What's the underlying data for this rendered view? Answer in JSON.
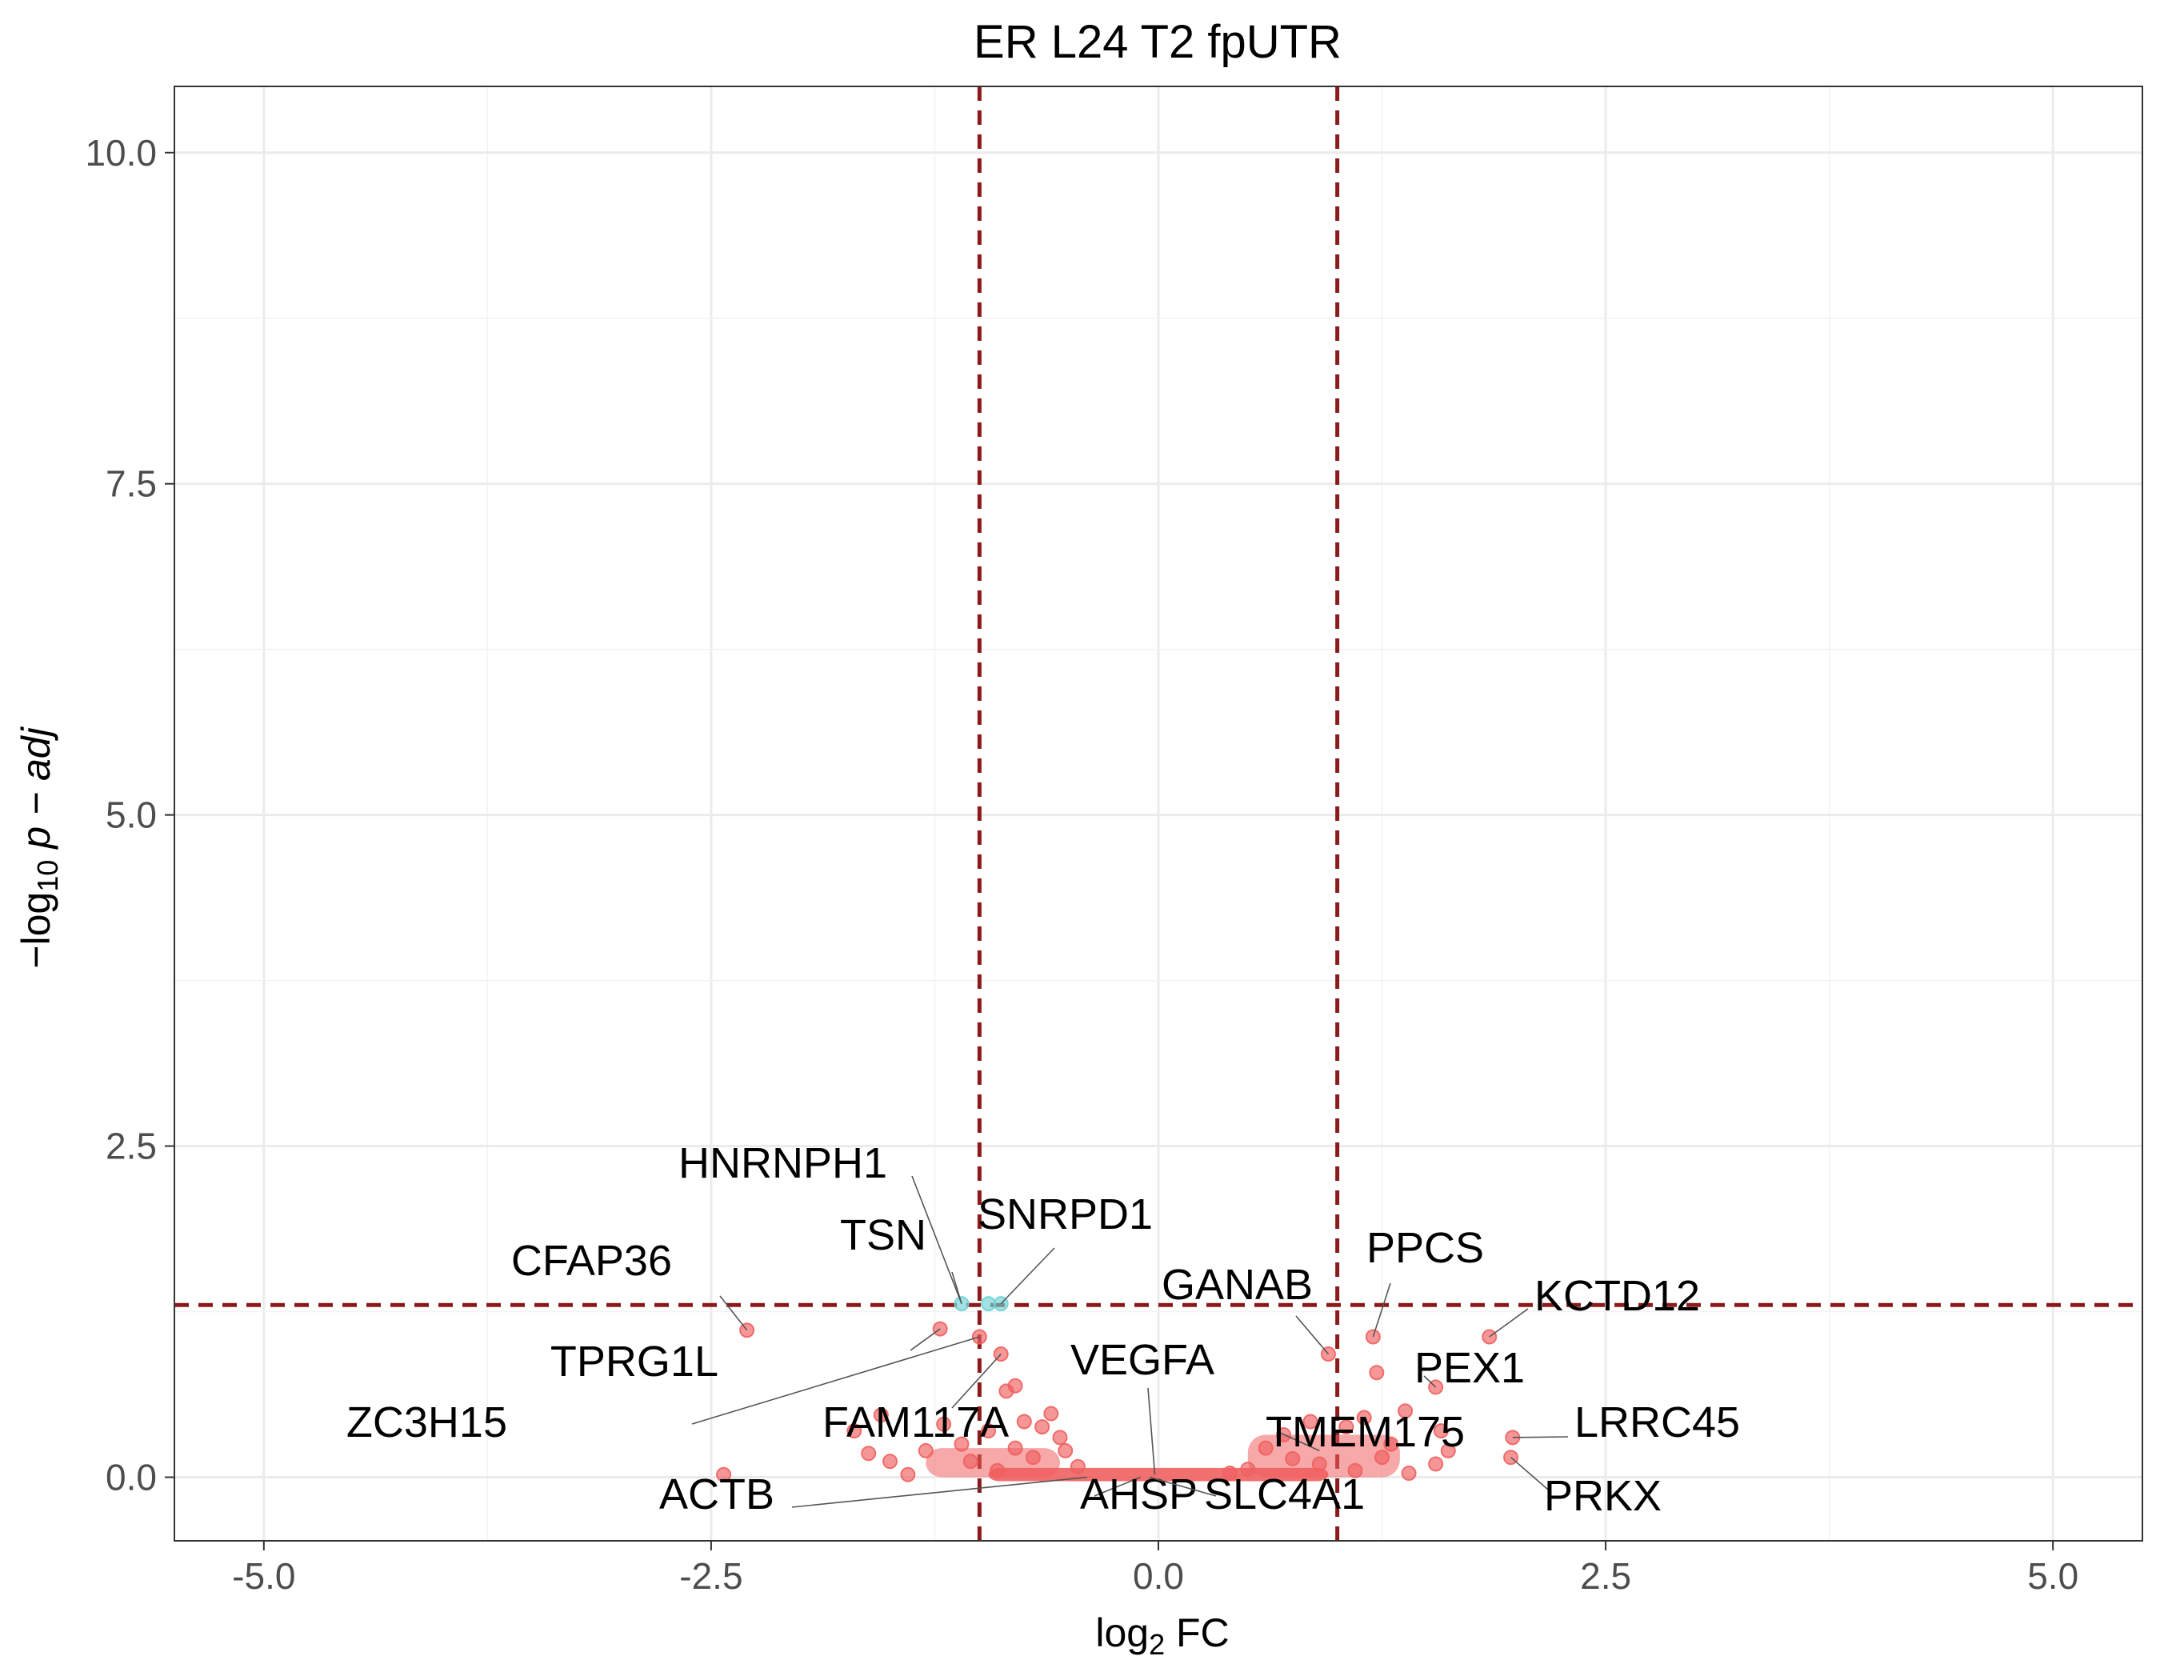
{
  "chart_data": {
    "type": "scatter",
    "title": "ER L24 T2 fpUTR",
    "xlabel": "log2 FC",
    "ylabel": "−log10 p − adj",
    "xlim": [
      -5.5,
      5.5
    ],
    "ylim": [
      -0.48,
      10.5
    ],
    "x_ticks": [
      -5.0,
      -2.5,
      0.0,
      2.5,
      5.0
    ],
    "x_tick_labels": [
      "-5.0",
      "-2.5",
      "0.0",
      "2.5",
      "5.0"
    ],
    "y_ticks": [
      0.0,
      2.5,
      5.0,
      7.5,
      10.0
    ],
    "y_tick_labels": [
      "0.0",
      "2.5",
      "5.0",
      "7.5",
      "10.0"
    ],
    "grid": true,
    "thresholds": {
      "fc": [
        -1.0,
        1.0
      ],
      "neglog10_padj": 1.3,
      "color": "#8b1a1a"
    },
    "colors": {
      "significant": "#6fd3d6",
      "not_significant": "#f06060"
    },
    "series": [
      {
        "group": "significant",
        "points": [
          {
            "x": -1.1,
            "y": 1.31
          },
          {
            "x": -0.95,
            "y": 1.31
          },
          {
            "x": -0.88,
            "y": 1.31
          }
        ]
      },
      {
        "group": "not_significant",
        "points": [
          {
            "x": -2.3,
            "y": 1.11
          },
          {
            "x": -1.22,
            "y": 1.12
          },
          {
            "x": -1.0,
            "y": 1.06
          },
          {
            "x": -0.88,
            "y": 0.93
          },
          {
            "x": -0.8,
            "y": 0.69
          },
          {
            "x": -0.85,
            "y": 0.65
          },
          {
            "x": -1.55,
            "y": 0.47
          },
          {
            "x": -1.7,
            "y": 0.35
          },
          {
            "x": -1.62,
            "y": 0.18
          },
          {
            "x": -1.5,
            "y": 0.12
          },
          {
            "x": -1.4,
            "y": 0.02
          },
          {
            "x": -2.43,
            "y": 0.02
          },
          {
            "x": -1.3,
            "y": 0.2
          },
          {
            "x": -1.2,
            "y": 0.4
          },
          {
            "x": -1.1,
            "y": 0.25
          },
          {
            "x": -0.95,
            "y": 0.35
          },
          {
            "x": -0.75,
            "y": 0.42
          },
          {
            "x": -0.6,
            "y": 0.48
          },
          {
            "x": -0.55,
            "y": 0.3
          },
          {
            "x": -0.52,
            "y": 0.2
          },
          {
            "x": -0.7,
            "y": 0.15
          },
          {
            "x": -0.65,
            "y": 0.38
          },
          {
            "x": -0.9,
            "y": 0.05
          },
          {
            "x": -1.05,
            "y": 0.12
          },
          {
            "x": -0.8,
            "y": 0.22
          },
          {
            "x": -0.45,
            "y": 0.08
          },
          {
            "x": 0.95,
            "y": 0.93
          },
          {
            "x": 1.2,
            "y": 1.06
          },
          {
            "x": 1.22,
            "y": 0.79
          },
          {
            "x": 1.55,
            "y": 0.68
          },
          {
            "x": 1.38,
            "y": 0.5
          },
          {
            "x": 1.85,
            "y": 1.06
          },
          {
            "x": 1.98,
            "y": 0.3
          },
          {
            "x": 1.97,
            "y": 0.15
          },
          {
            "x": 1.58,
            "y": 0.35
          },
          {
            "x": 1.62,
            "y": 0.2
          },
          {
            "x": 1.55,
            "y": 0.1
          },
          {
            "x": 1.15,
            "y": 0.45
          },
          {
            "x": 1.05,
            "y": 0.38
          },
          {
            "x": 0.85,
            "y": 0.42
          },
          {
            "x": 0.7,
            "y": 0.32
          },
          {
            "x": 0.6,
            "y": 0.22
          },
          {
            "x": 0.75,
            "y": 0.14
          },
          {
            "x": 0.9,
            "y": 0.1
          },
          {
            "x": 1.1,
            "y": 0.05
          },
          {
            "x": 1.3,
            "y": 0.25
          },
          {
            "x": 1.4,
            "y": 0.03
          },
          {
            "x": 0.5,
            "y": 0.06
          },
          {
            "x": 0.4,
            "y": 0.03
          },
          {
            "x": 1.25,
            "y": 0.15
          }
        ]
      }
    ],
    "labels": [
      {
        "text": "HNRNPH1",
        "x": -1.1,
        "y": 1.31
      },
      {
        "text": "TSN",
        "x": -1.1,
        "y": 1.31
      },
      {
        "text": "SNRPD1",
        "x": -0.88,
        "y": 1.31
      },
      {
        "text": "CFAP36",
        "x": -2.3,
        "y": 1.11
      },
      {
        "text": "TPRG1L",
        "x": -1.22,
        "y": 1.12
      },
      {
        "text": "ZC3H15",
        "x": -1.0,
        "y": 1.06
      },
      {
        "text": "FAM117A",
        "x": -0.88,
        "y": 0.93
      },
      {
        "text": "VEGFA",
        "x": -0.02,
        "y": 0.02
      },
      {
        "text": "ACTB",
        "x": -0.4,
        "y": 0.0
      },
      {
        "text": "AHSP",
        "x": -0.1,
        "y": 0.0
      },
      {
        "text": "SLC4A1",
        "x": -0.05,
        "y": 0.0
      },
      {
        "text": "GANAB",
        "x": 0.95,
        "y": 0.93
      },
      {
        "text": "PPCS",
        "x": 1.2,
        "y": 1.06
      },
      {
        "text": "KCTD12",
        "x": 1.85,
        "y": 1.06
      },
      {
        "text": "PEX1",
        "x": 1.55,
        "y": 0.68
      },
      {
        "text": "TMEM175",
        "x": 0.9,
        "y": 0.2
      },
      {
        "text": "LRRC45",
        "x": 1.98,
        "y": 0.3
      },
      {
        "text": "PRKX",
        "x": 1.97,
        "y": 0.15
      }
    ]
  }
}
